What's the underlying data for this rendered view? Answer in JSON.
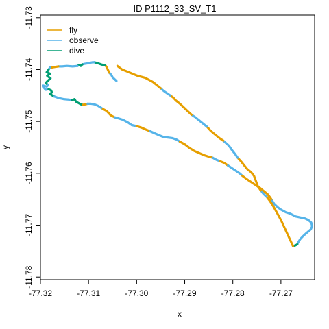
{
  "chart_data": {
    "type": "line",
    "title": "ID P1112_33_SV_T1",
    "xlabel": "x",
    "ylabel": "y",
    "xlim": [
      -77.32,
      -77.263
    ],
    "ylim": [
      -11.7805,
      -11.7295
    ],
    "x_ticks": [
      -77.32,
      -77.31,
      -77.3,
      -77.29,
      -77.28,
      -77.27
    ],
    "y_ticks": [
      -11.73,
      -11.74,
      -11.75,
      -11.76,
      -11.77,
      -11.78
    ],
    "x_tick_labels": [
      "-77.32",
      "-77.31",
      "-77.30",
      "-77.29",
      "-77.28",
      "-77.27"
    ],
    "y_tick_labels": [
      "-11.73",
      "-11.74",
      "-11.75",
      "-11.76",
      "-11.77",
      "-11.78"
    ],
    "grid": false,
    "legend_position": "top-left",
    "series": [
      {
        "name": "fly",
        "color": "#E69F00",
        "segments": [
          [
            [
              -77.3305,
              -11.7421
            ],
            [
              -77.305,
              -11.7395
            ],
            [
              -77.305,
              -11.74
            ]
          ]
        ]
      },
      {
        "name": "observe",
        "color": "#56B4E9",
        "segments": []
      },
      {
        "name": "dive",
        "color": "#009E73",
        "segments": []
      }
    ],
    "track": [
      {
        "s": "observe",
        "pts": [
          [
            -77.3042,
            -11.7422
          ],
          [
            -77.305,
            -11.7415
          ],
          [
            -77.3053,
            -11.741
          ],
          [
            -77.3057,
            -11.7406
          ]
        ]
      },
      {
        "s": "fly",
        "pts": [
          [
            -77.3057,
            -11.7406
          ],
          [
            -77.306,
            -11.74
          ],
          [
            -77.3062,
            -11.7396
          ],
          [
            -77.3064,
            -11.7393
          ],
          [
            -77.3066,
            -11.7392
          ]
        ]
      },
      {
        "s": "dive",
        "pts": [
          [
            -77.3066,
            -11.7392
          ],
          [
            -77.307,
            -11.7391
          ],
          [
            -77.3074,
            -11.739
          ],
          [
            -77.3077,
            -11.7389
          ],
          [
            -77.308,
            -11.7388
          ],
          [
            -77.3084,
            -11.7387
          ],
          [
            -77.3088,
            -11.7386
          ]
        ]
      },
      {
        "s": "observe",
        "pts": [
          [
            -77.3088,
            -11.7386
          ],
          [
            -77.3092,
            -11.7386
          ],
          [
            -77.3097,
            -11.7387
          ],
          [
            -77.3102,
            -11.7388
          ],
          [
            -77.3108,
            -11.7389
          ],
          [
            -77.3113,
            -11.739
          ]
        ]
      },
      {
        "s": "dive",
        "pts": [
          [
            -77.3113,
            -11.739
          ],
          [
            -77.3116,
            -11.7393
          ],
          [
            -77.312,
            -11.7391
          ],
          [
            -77.3123,
            -11.7393
          ]
        ]
      },
      {
        "s": "observe",
        "pts": [
          [
            -77.3123,
            -11.7393
          ],
          [
            -77.3133,
            -11.7394
          ],
          [
            -77.3145,
            -11.7393
          ],
          [
            -77.3155,
            -11.7394
          ],
          [
            -77.3163,
            -11.7394
          ]
        ]
      },
      {
        "s": "fly",
        "pts": [
          [
            -77.3163,
            -11.7394
          ],
          [
            -77.317,
            -11.7395
          ],
          [
            -77.3176,
            -11.7396
          ],
          [
            -77.318,
            -11.7396
          ]
        ]
      },
      {
        "s": "observe",
        "pts": [
          [
            -77.318,
            -11.7396
          ],
          [
            -77.3183,
            -11.74
          ]
        ]
      },
      {
        "s": "dive",
        "pts": [
          [
            -77.3183,
            -11.74
          ],
          [
            -77.3187,
            -11.7405
          ],
          [
            -77.318,
            -11.7408
          ],
          [
            -77.3186,
            -11.7412
          ],
          [
            -77.3179,
            -11.7417
          ],
          [
            -77.3184,
            -11.7421
          ],
          [
            -77.3189,
            -11.7426
          ],
          [
            -77.3184,
            -11.743
          ]
        ]
      },
      {
        "s": "observe",
        "pts": [
          [
            -77.3184,
            -11.743
          ],
          [
            -77.3187,
            -11.7433
          ],
          [
            -77.3194,
            -11.7431
          ],
          [
            -77.3192,
            -11.7436
          ],
          [
            -77.3189,
            -11.7439
          ],
          [
            -77.3183,
            -11.7438
          ]
        ]
      },
      {
        "s": "dive",
        "pts": [
          [
            -77.3183,
            -11.7438
          ],
          [
            -77.3178,
            -11.744
          ],
          [
            -77.3176,
            -11.7444
          ],
          [
            -77.318,
            -11.7447
          ],
          [
            -77.3175,
            -11.745
          ],
          [
            -77.3171,
            -11.7452
          ]
        ]
      },
      {
        "s": "observe",
        "pts": [
          [
            -77.3171,
            -11.7452
          ],
          [
            -77.3162,
            -11.7455
          ],
          [
            -77.3152,
            -11.7457
          ],
          [
            -77.314,
            -11.7458
          ],
          [
            -77.3134,
            -11.7459
          ]
        ]
      },
      {
        "s": "dive",
        "pts": [
          [
            -77.3134,
            -11.7459
          ],
          [
            -77.3129,
            -11.7457
          ],
          [
            -77.3126,
            -11.7462
          ],
          [
            -77.3122,
            -11.7464
          ],
          [
            -77.3116,
            -11.7467
          ],
          [
            -77.3112,
            -11.7468
          ]
        ]
      },
      {
        "s": "fly",
        "pts": [
          [
            -77.3112,
            -11.7468
          ],
          [
            -77.3106,
            -11.7467
          ],
          [
            -77.3102,
            -11.7466
          ]
        ]
      },
      {
        "s": "observe",
        "pts": [
          [
            -77.3102,
            -11.7466
          ],
          [
            -77.3095,
            -11.7466
          ],
          [
            -77.3088,
            -11.7467
          ],
          [
            -77.308,
            -11.747
          ],
          [
            -77.307,
            -11.7476
          ]
        ]
      },
      {
        "s": "fly",
        "pts": [
          [
            -77.307,
            -11.7476
          ],
          [
            -77.3062,
            -11.748
          ],
          [
            -77.3054,
            -11.7488
          ],
          [
            -77.3046,
            -11.7492
          ]
        ]
      },
      {
        "s": "observe",
        "pts": [
          [
            -77.3046,
            -11.7492
          ],
          [
            -77.3038,
            -11.7494
          ],
          [
            -77.3028,
            -11.7497
          ],
          [
            -77.3018,
            -11.7502
          ],
          [
            -77.301,
            -11.7507
          ],
          [
            -77.3,
            -11.7509
          ]
        ]
      },
      {
        "s": "fly",
        "pts": [
          [
            -77.3,
            -11.7509
          ],
          [
            -77.299,
            -11.7512
          ],
          [
            -77.298,
            -11.7516
          ],
          [
            -77.2972,
            -11.7519
          ]
        ]
      },
      {
        "s": "observe",
        "pts": [
          [
            -77.2972,
            -11.7519
          ],
          [
            -77.2962,
            -11.7523
          ],
          [
            -77.2952,
            -11.7527
          ],
          [
            -77.2944,
            -11.753
          ],
          [
            -77.2935,
            -11.7531
          ],
          [
            -77.2926,
            -11.7532
          ],
          [
            -77.2917,
            -11.7535
          ],
          [
            -77.291,
            -11.7539
          ]
        ]
      },
      {
        "s": "fly",
        "pts": [
          [
            -77.291,
            -11.7539
          ],
          [
            -77.29,
            -11.7544
          ],
          [
            -77.289,
            -11.7551
          ],
          [
            -77.288,
            -11.7557
          ],
          [
            -77.287,
            -11.7561
          ],
          [
            -77.286,
            -11.7565
          ],
          [
            -77.285,
            -11.7568
          ],
          [
            -77.2842,
            -11.757
          ]
        ]
      },
      {
        "s": "observe",
        "pts": [
          [
            -77.2842,
            -11.757
          ],
          [
            -77.2834,
            -11.7574
          ],
          [
            -77.2826,
            -11.7577
          ]
        ]
      },
      {
        "s": "fly",
        "pts": [
          [
            -77.2826,
            -11.7577
          ],
          [
            -77.2818,
            -11.758
          ],
          [
            -77.281,
            -11.7585
          ]
        ]
      },
      {
        "s": "observe",
        "pts": [
          [
            -77.281,
            -11.7585
          ],
          [
            -77.2802,
            -11.759
          ],
          [
            -77.2794,
            -11.7595
          ],
          [
            -77.2786,
            -11.76
          ],
          [
            -77.278,
            -11.7605
          ]
        ]
      },
      {
        "s": "fly",
        "pts": [
          [
            -77.278,
            -11.7605
          ],
          [
            -77.277,
            -11.7612
          ],
          [
            -77.276,
            -11.7618
          ],
          [
            -77.2752,
            -11.7623
          ],
          [
            -77.2744,
            -11.7628
          ],
          [
            -77.2736,
            -11.7634
          ],
          [
            -77.2728,
            -11.764
          ],
          [
            -77.2722,
            -11.7647
          ],
          [
            -77.2718,
            -11.7653
          ]
        ]
      },
      {
        "s": "observe",
        "pts": [
          [
            -77.2718,
            -11.7653
          ],
          [
            -77.2714,
            -11.7659
          ],
          [
            -77.2706,
            -11.7666
          ],
          [
            -77.27,
            -11.767
          ],
          [
            -77.269,
            -11.7675
          ],
          [
            -77.268,
            -11.7678
          ],
          [
            -77.267,
            -11.7683
          ],
          [
            -77.266,
            -11.7685
          ],
          [
            -77.265,
            -11.7687
          ],
          [
            -77.2643,
            -11.769
          ],
          [
            -77.2637,
            -11.7695
          ],
          [
            -77.2635,
            -11.7702
          ],
          [
            -77.2638,
            -11.7708
          ],
          [
            -77.2643,
            -11.7712
          ],
          [
            -77.2648,
            -11.7716
          ],
          [
            -77.2655,
            -11.7722
          ],
          [
            -77.266,
            -11.7727
          ],
          [
            -77.2664,
            -11.7733
          ],
          [
            -77.2666,
            -11.7737
          ]
        ]
      },
      {
        "s": "dive",
        "pts": [
          [
            -77.2666,
            -11.7737
          ],
          [
            -77.267,
            -11.7739
          ],
          [
            -77.2675,
            -11.774
          ]
        ]
      },
      {
        "s": "fly",
        "pts": [
          [
            -77.2675,
            -11.774
          ],
          [
            -77.268,
            -11.773
          ],
          [
            -77.2685,
            -11.772
          ],
          [
            -77.269,
            -11.771
          ],
          [
            -77.2695,
            -11.77
          ],
          [
            -77.27,
            -11.769
          ],
          [
            -77.2706,
            -11.768
          ],
          [
            -77.2712,
            -11.767
          ],
          [
            -77.2718,
            -11.766
          ],
          [
            -77.2724,
            -11.7652
          ],
          [
            -77.273,
            -11.7645
          ]
        ]
      },
      {
        "s": "observe",
        "pts": [
          [
            -77.273,
            -11.7645
          ],
          [
            -77.2736,
            -11.764
          ],
          [
            -77.2742,
            -11.7633
          ]
        ]
      },
      {
        "s": "fly",
        "pts": [
          [
            -77.2742,
            -11.7633
          ],
          [
            -77.2748,
            -11.7625
          ],
          [
            -77.2752,
            -11.7615
          ],
          [
            -77.2756,
            -11.7605
          ],
          [
            -77.2762,
            -11.7598
          ],
          [
            -77.277,
            -11.7592
          ],
          [
            -77.2776,
            -11.7585
          ],
          [
            -77.2782,
            -11.7578
          ],
          [
            -77.279,
            -11.757
          ]
        ]
      },
      {
        "s": "observe",
        "pts": [
          [
            -77.279,
            -11.757
          ],
          [
            -77.2796,
            -11.7562
          ],
          [
            -77.2802,
            -11.7555
          ],
          [
            -77.2808,
            -11.7547
          ],
          [
            -77.2814,
            -11.7542
          ],
          [
            -77.282,
            -11.7537
          ]
        ]
      },
      {
        "s": "fly",
        "pts": [
          [
            -77.282,
            -11.7537
          ],
          [
            -77.2828,
            -11.7532
          ],
          [
            -77.2836,
            -11.7526
          ],
          [
            -77.2846,
            -11.7518
          ],
          [
            -77.2854,
            -11.751
          ]
        ]
      },
      {
        "s": "observe",
        "pts": [
          [
            -77.2854,
            -11.751
          ],
          [
            -77.2862,
            -11.7504
          ],
          [
            -77.287,
            -11.7498
          ],
          [
            -77.2878,
            -11.7492
          ],
          [
            -77.2886,
            -11.7487
          ]
        ]
      },
      {
        "s": "fly",
        "pts": [
          [
            -77.2886,
            -11.7487
          ],
          [
            -77.2894,
            -11.748
          ],
          [
            -77.2902,
            -11.7473
          ],
          [
            -77.291,
            -11.7466
          ],
          [
            -77.2918,
            -11.746
          ],
          [
            -77.2924,
            -11.7454
          ],
          [
            -77.293,
            -11.745
          ]
        ]
      },
      {
        "s": "observe",
        "pts": [
          [
            -77.293,
            -11.745
          ],
          [
            -77.2938,
            -11.7445
          ],
          [
            -77.2944,
            -11.7441
          ],
          [
            -77.295,
            -11.7436
          ]
        ]
      },
      {
        "s": "fly",
        "pts": [
          [
            -77.295,
            -11.7436
          ],
          [
            -77.2958,
            -11.743
          ],
          [
            -77.2966,
            -11.7424
          ],
          [
            -77.2974,
            -11.742
          ],
          [
            -77.2982,
            -11.7416
          ],
          [
            -77.299,
            -11.7414
          ],
          [
            -77.2998,
            -11.7412
          ],
          [
            -77.3006,
            -11.7409
          ],
          [
            -77.3014,
            -11.7406
          ],
          [
            -77.3022,
            -11.7403
          ],
          [
            -77.303,
            -11.74
          ],
          [
            -77.3036,
            -11.7396
          ],
          [
            -77.304,
            -11.7393
          ]
        ]
      }
    ]
  }
}
